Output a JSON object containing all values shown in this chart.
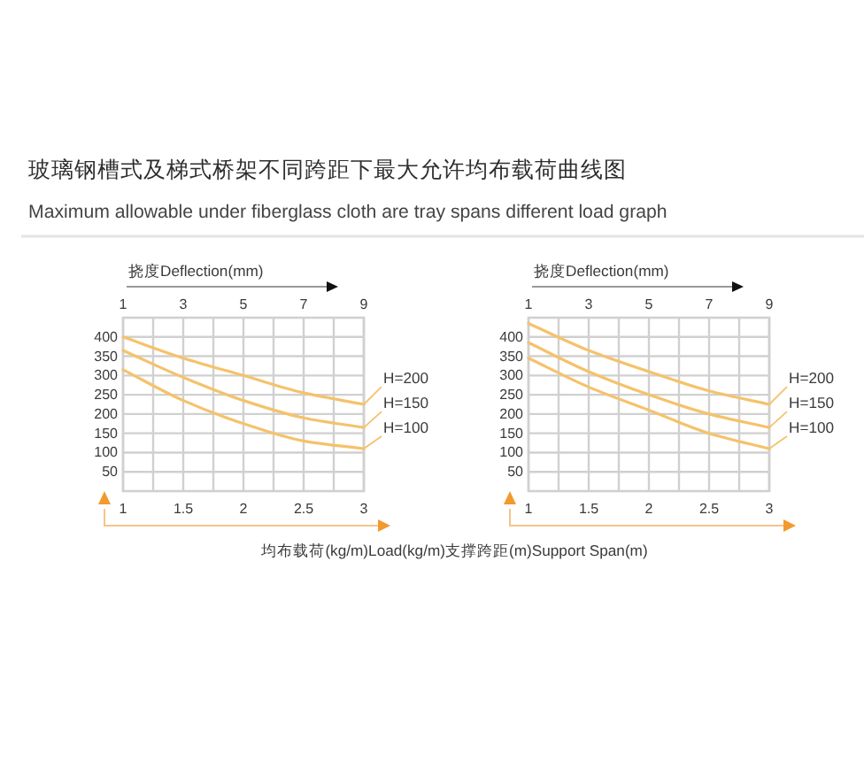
{
  "chart_data": [
    {
      "type": "line",
      "title": "玻璃钢槽式及梯式桥架不同跨距下最大允许均布载荷曲线图",
      "subtitle": "Maximum allowable under fiberglass cloth are tray spans different load graph",
      "xlabel": "均布载荷(kg/m)Load(kg/m)",
      "x2label": "挠度Deflection(mm)",
      "x": [
        1,
        1.5,
        2,
        2.5,
        3
      ],
      "series": [
        {
          "name": "H=200",
          "color": "#f5c26b",
          "values": [
            400,
            345,
            300,
            255,
            225
          ]
        },
        {
          "name": "H=150",
          "color": "#f5c26b",
          "values": [
            365,
            295,
            235,
            190,
            165
          ]
        },
        {
          "name": "H=100",
          "color": "#f5c26b",
          "values": [
            315,
            235,
            175,
            130,
            110
          ]
        }
      ],
      "xlim": [
        1,
        3
      ],
      "xticks": [
        1,
        1.5,
        2,
        2.5,
        3
      ],
      "x2lim": [
        1,
        9
      ],
      "x2ticks": [
        1,
        {
          "value": 2,
          "label": null
        },
        3,
        {
          "value": 4,
          "label": null
        },
        5,
        {
          "value": 6,
          "label": null
        },
        7,
        {
          "value": 8,
          "label": null
        },
        9
      ],
      "ylim": [
        0,
        450
      ],
      "yticks": [
        50,
        100,
        150,
        200,
        250,
        300,
        350,
        400
      ],
      "grid": true
    },
    {
      "type": "line",
      "xlabel": "支撑跨距(m)Support Span(m)",
      "x2label": "挠度Deflection(mm)",
      "x": [
        1,
        1.5,
        2,
        2.5,
        3
      ],
      "series": [
        {
          "name": "H=200",
          "color": "#f5c26b",
          "values": [
            435,
            365,
            310,
            260,
            225
          ]
        },
        {
          "name": "H=150",
          "color": "#f5c26b",
          "values": [
            385,
            310,
            250,
            200,
            165
          ]
        },
        {
          "name": "H=100",
          "color": "#f5c26b",
          "values": [
            345,
            270,
            210,
            150,
            110
          ]
        }
      ],
      "xlim": [
        1,
        3
      ],
      "xticks": [
        1,
        1.5,
        2,
        2.5,
        3
      ],
      "x2lim": [
        1,
        9
      ],
      "x2ticks": [
        1,
        {
          "value": 2,
          "label": null
        },
        3,
        {
          "value": 4,
          "label": null
        },
        5,
        {
          "value": 6,
          "label": null
        },
        7,
        {
          "value": 8,
          "label": null
        },
        9
      ],
      "ylim": [
        0,
        450
      ],
      "yticks": [
        50,
        100,
        150,
        200,
        250,
        300,
        350,
        400
      ],
      "grid": true
    }
  ]
}
